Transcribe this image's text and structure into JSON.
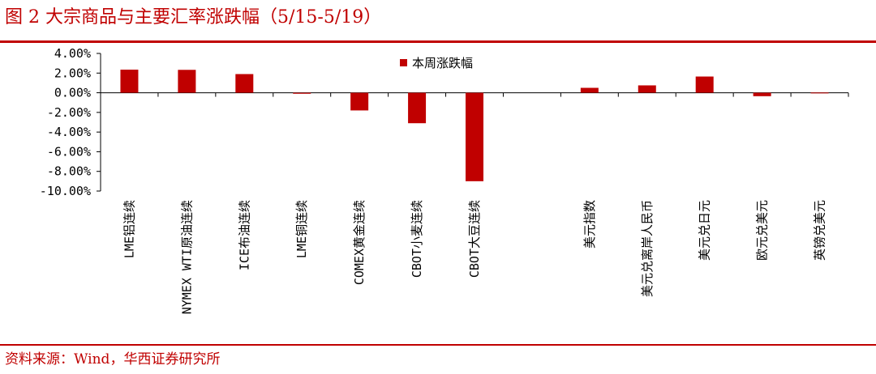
{
  "title": "图 2 大宗商品与主要汇率涨跌幅（5/15-5/19）",
  "source": "资料来源：Wind，华西证券研究所",
  "colors": {
    "accent": "#c00000",
    "bar": "#c00000"
  },
  "chart_data": {
    "type": "bar",
    "categories": [
      "LME铝连续",
      "NYMEX WTI原油连续",
      "ICE布油连续",
      "LME铜连续",
      "COMEX黄金连续",
      "CBOT小麦连续",
      "CBOT大豆连续",
      "",
      "美元指数",
      "美元兑离岸人民币",
      "美元兑日元",
      "欧元兑美元",
      "英镑兑美元"
    ],
    "series": [
      {
        "name": "本周涨跌幅",
        "values": [
          2.35,
          2.33,
          1.9,
          -0.1,
          -1.8,
          -3.1,
          -9.0,
          null,
          0.5,
          0.75,
          1.65,
          -0.35,
          0.02
        ]
      }
    ],
    "ylim": [
      -10,
      4
    ],
    "yticks": [
      4,
      2,
      0,
      -2,
      -4,
      -6,
      -8,
      -10
    ],
    "ytick_labels": [
      "4.00%",
      "2.00%",
      "0.00%",
      "-2.00%",
      "-4.00%",
      "-6.00%",
      "-8.00%",
      "-10.00%"
    ],
    "legend_position": "top-center",
    "grid": false,
    "xlabel": "",
    "ylabel": ""
  }
}
